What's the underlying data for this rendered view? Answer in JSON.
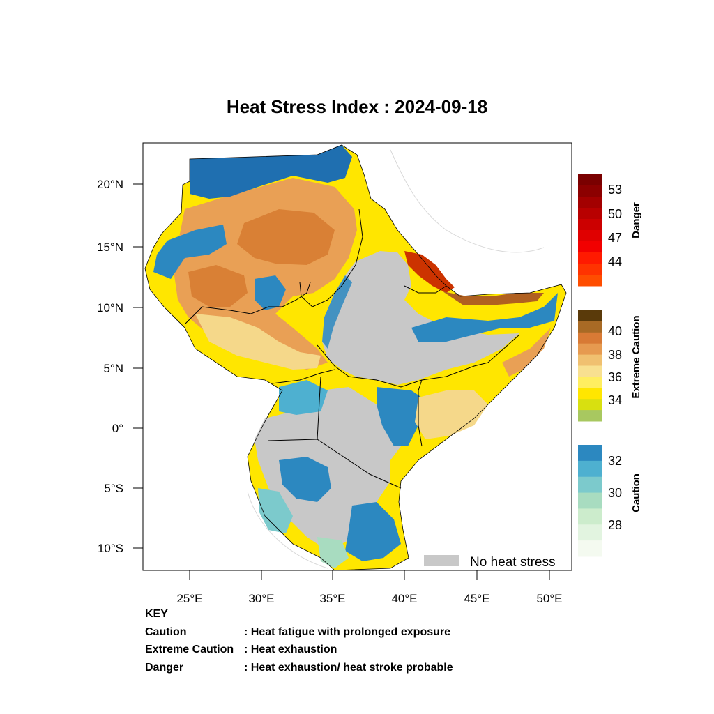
{
  "title": "Heat Stress Index : 2024-09-18",
  "axes": {
    "lat_ticks": [
      "20°N",
      "15°N",
      "10°N",
      "5°N",
      "0°",
      "5°S",
      "10°S"
    ],
    "lon_ticks": [
      "25°E",
      "30°E",
      "35°E",
      "40°E",
      "45°E",
      "50°E"
    ]
  },
  "legend": {
    "no_heat_stress": "No heat stress",
    "no_heat_color": "#c8c8c8",
    "bars": [
      {
        "name": "Danger",
        "labels": [
          "53",
          "50",
          "47",
          "44"
        ],
        "colors": [
          "#7a0000",
          "#8c0000",
          "#a30000",
          "#b80000",
          "#cc0000",
          "#e00000",
          "#f20000",
          "#ff1a00",
          "#ff3300",
          "#ff4d00"
        ]
      },
      {
        "name": "Extreme Caution",
        "labels": [
          "40",
          "38",
          "36",
          "34"
        ],
        "colors": [
          "#5a3a0a",
          "#a86a25",
          "#d87a35",
          "#e69a50",
          "#f0c070",
          "#f8e090",
          "#ffee60",
          "#ffe600",
          "#d8e010",
          "#a8c860"
        ]
      },
      {
        "name": "Caution",
        "labels": [
          "32",
          "30",
          "28"
        ],
        "colors": [
          "#2c88c0",
          "#4eb0d0",
          "#7ccacc",
          "#a8dcc0",
          "#cceccc",
          "#e2f4e0",
          "#f4faf0"
        ]
      }
    ]
  },
  "key": {
    "heading": "KEY",
    "rows": [
      {
        "term": "Caution",
        "desc": ": Heat fatigue with prolonged exposure"
      },
      {
        "term": "Extreme Caution",
        "desc": " : Heat exhaustion"
      },
      {
        "term": "Danger",
        "desc": ": Heat exhaustion/ heat stroke probable"
      }
    ]
  }
}
